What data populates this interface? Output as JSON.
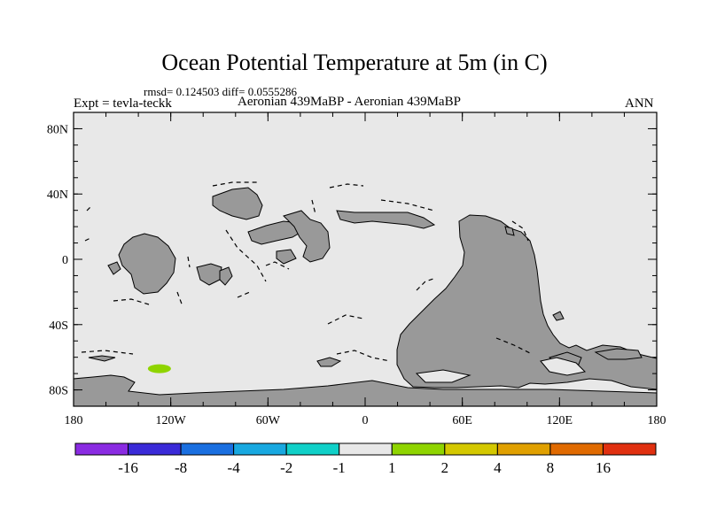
{
  "title": "Ocean Potential Temperature at 5m (in C)",
  "stats": "rmsd= 0.124503 diff= 0.0555286",
  "experiment": "Expt = tevla-teckk",
  "subtitle": "Aeronian 439MaBP - Aeronian 439MaBP",
  "season": "ANN",
  "map": {
    "projection": "cylindrical equidistant",
    "lon_range": [
      -180,
      180
    ],
    "lat_range": [
      -90,
      90
    ],
    "background_color": "#e8e8e8",
    "land_color": "#999999",
    "lon_ticks": [
      {
        "value": -180,
        "label": "180"
      },
      {
        "value": -120,
        "label": "120W"
      },
      {
        "value": -60,
        "label": "60W"
      },
      {
        "value": 0,
        "label": "0"
      },
      {
        "value": 60,
        "label": "60E"
      },
      {
        "value": 120,
        "label": "120E"
      },
      {
        "value": 180,
        "label": "180"
      }
    ],
    "lat_ticks": [
      {
        "value": 80,
        "label": "80N"
      },
      {
        "value": 40,
        "label": "40N"
      },
      {
        "value": 0,
        "label": "0"
      },
      {
        "value": -40,
        "label": "40S"
      },
      {
        "value": -80,
        "label": "80S"
      }
    ],
    "anomaly_patch": {
      "lon": -127,
      "lat": -67,
      "bin": "1 to 2",
      "color": "#8fd400"
    }
  },
  "colorbar": {
    "colors": [
      "#8a2be2",
      "#3a2ad8",
      "#1a6fe0",
      "#18a8e0",
      "#10d0c8",
      "#e8e8e8",
      "#8fd400",
      "#d4c800",
      "#e0a000",
      "#e06a00",
      "#e03010"
    ],
    "labels": [
      "-16",
      "-8",
      "-4",
      "-2",
      "-1",
      "1",
      "2",
      "4",
      "8",
      "16"
    ]
  }
}
